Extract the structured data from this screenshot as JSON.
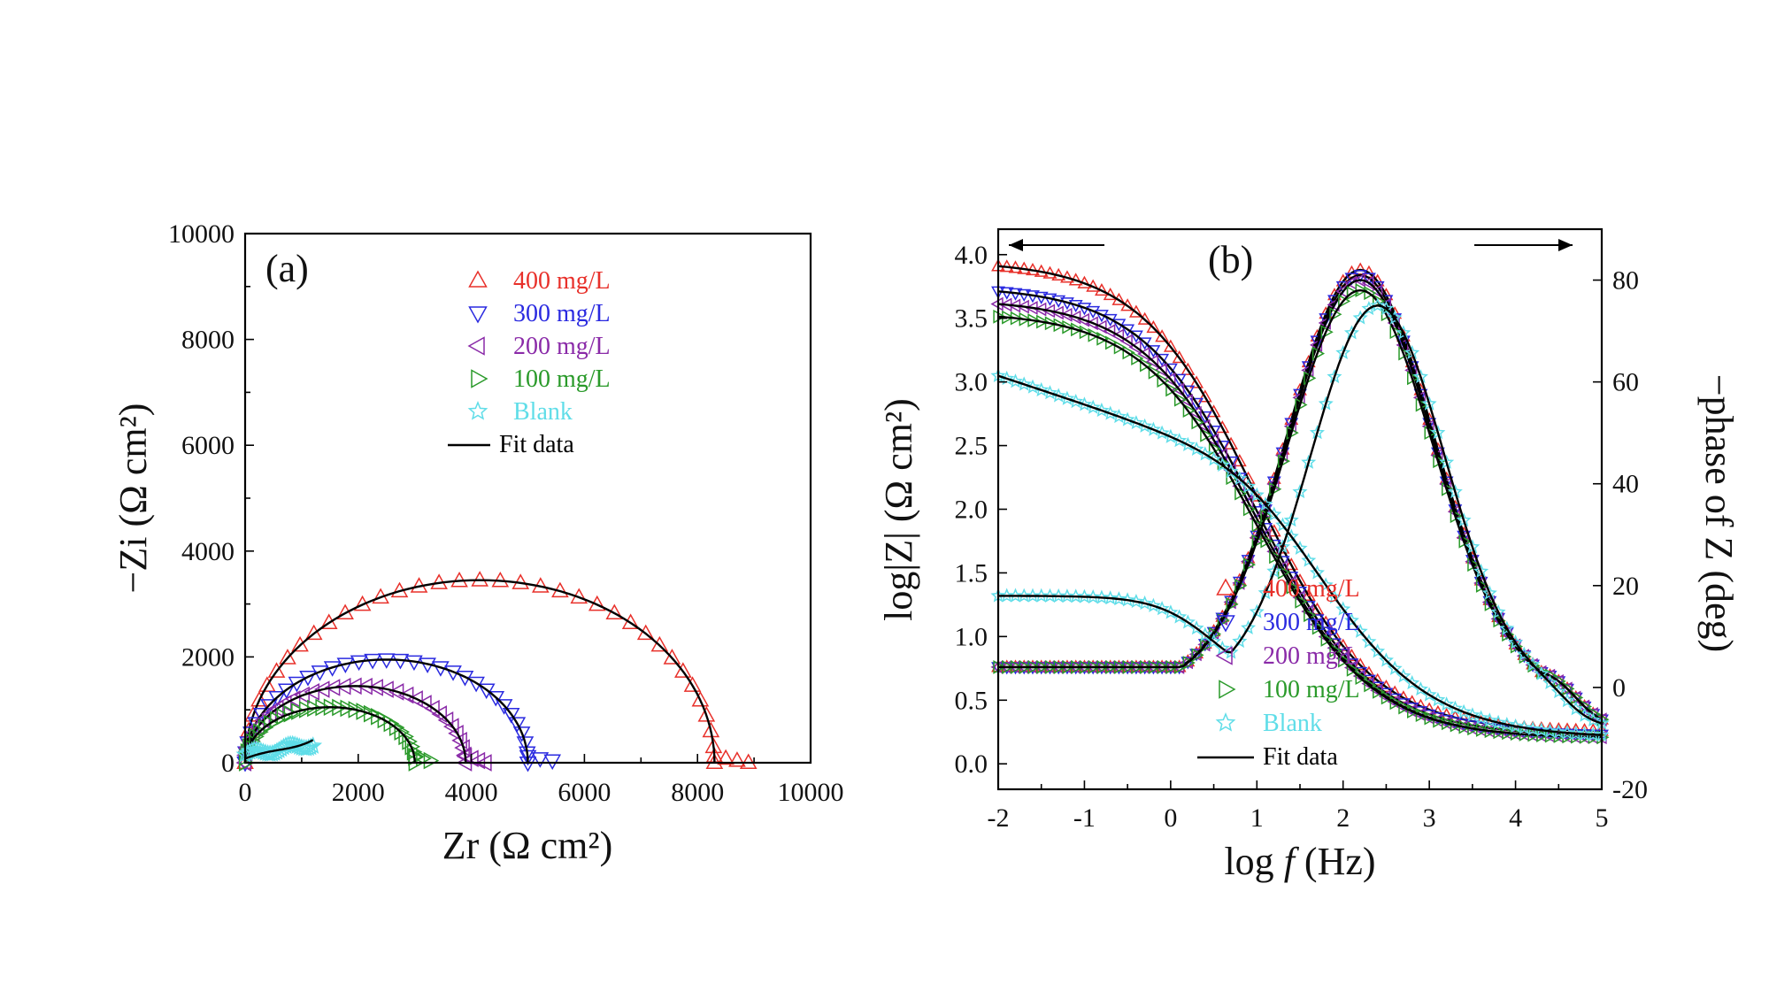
{
  "chart_data": [
    {
      "panel_label": "(a)",
      "type": "scatter",
      "title": "",
      "xlabel": "Zr (Ω cm²)",
      "ylabel": "−Zi (Ω cm²)",
      "xlim": [
        0,
        10000
      ],
      "ylim": [
        0,
        10000
      ],
      "xticks": [
        "0",
        "2000",
        "4000",
        "6000",
        "8000",
        "10000"
      ],
      "yticks": [
        "0",
        "2000",
        "4000",
        "6000",
        "8000",
        "10000"
      ],
      "legend_position": "top-center",
      "series": [
        {
          "name": "400 mg/L",
          "marker": "triangle-up",
          "color": "#e8302a",
          "x_range": [
            0,
            8900
          ],
          "peak_x": 4150,
          "peak_y": 3450
        },
        {
          "name": "300 mg/L",
          "marker": "triangle-down",
          "color": "#2a2ae0",
          "x_range": [
            0,
            5650
          ],
          "peak_x": 2500,
          "peak_y": 1950
        },
        {
          "name": "200 mg/L",
          "marker": "triangle-left",
          "color": "#8a2aa8",
          "x_range": [
            0,
            4250
          ],
          "peak_x": 1950,
          "peak_y": 1450
        },
        {
          "name": "100 mg/L",
          "marker": "triangle-right",
          "color": "#2a9a2a",
          "x_range": [
            0,
            3400
          ],
          "peak_x": 1500,
          "peak_y": 1050
        },
        {
          "name": "Blank",
          "marker": "star",
          "color": "#5fdde8",
          "x_range": [
            0,
            1200
          ],
          "peak_x": 600,
          "peak_y": 300
        },
        {
          "name": "Fit data",
          "marker": "line",
          "color": "#000000"
        }
      ]
    },
    {
      "panel_label": "(b)",
      "type": "line",
      "title": "",
      "xlabel": "log f  (Hz)",
      "xlabel_parts": [
        "log ",
        "f",
        "  (Hz)"
      ],
      "ylabel": "log|Z| (Ω cm²)",
      "y2label": "−phase of Z (deg)",
      "xlim": [
        -2,
        5
      ],
      "ylim": [
        -0.2,
        4.2
      ],
      "y2lim": [
        -20,
        90
      ],
      "xticks": [
        "-2",
        "-1",
        "0",
        "1",
        "2",
        "3",
        "4",
        "5"
      ],
      "yticks": [
        "0.0",
        "0.5",
        "1.0",
        "1.5",
        "2.0",
        "2.5",
        "3.0",
        "3.5",
        "4.0"
      ],
      "y2ticks": [
        "-20",
        "0",
        "20",
        "40",
        "60",
        "80"
      ],
      "legend_position": "bottom-center",
      "series": [
        {
          "name": "400 mg/L",
          "marker": "triangle-up",
          "color": "#e8302a",
          "logZ_low": 3.95,
          "logZ_high": 0.25,
          "phase_peak": 82,
          "phase_peak_logf": 2.2
        },
        {
          "name": "300 mg/L",
          "marker": "triangle-down",
          "color": "#2a2ae0",
          "logZ_low": 3.75,
          "logZ_high": 0.22,
          "phase_peak": 81,
          "phase_peak_logf": 2.2
        },
        {
          "name": "200 mg/L",
          "marker": "triangle-left",
          "color": "#8a2aa8",
          "logZ_low": 3.65,
          "logZ_high": 0.2,
          "phase_peak": 80,
          "phase_peak_logf": 2.2
        },
        {
          "name": "100 mg/L",
          "marker": "triangle-right",
          "color": "#2a9a2a",
          "logZ_low": 3.55,
          "logZ_high": 0.2,
          "phase_peak": 78,
          "phase_peak_logf": 2.2
        },
        {
          "name": "Blank",
          "marker": "star",
          "color": "#5fdde8",
          "logZ_low": 3.05,
          "logZ_high": 0.2,
          "phase_peak": 75,
          "phase_peak_logf": 2.4
        },
        {
          "name": "Fit data",
          "marker": "line",
          "color": "#000000"
        }
      ]
    }
  ]
}
